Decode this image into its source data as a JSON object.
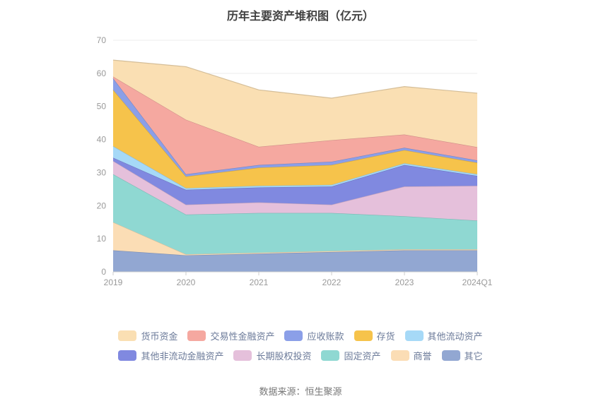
{
  "page": {
    "background": "#ffffff"
  },
  "chart": {
    "title": "历年主要资产堆积图（亿元）",
    "source": "数据来源：恒生聚源"
  },
  "chart_data": {
    "type": "area",
    "stacked": true,
    "stack_order": "reverse-of-legend",
    "title": "历年主要资产堆积图（亿元）",
    "xlabel": "",
    "ylabel": "",
    "categories": [
      "2019",
      "2020",
      "2021",
      "2022",
      "2023",
      "2024Q1"
    ],
    "ylim": [
      0,
      70
    ],
    "ytick_step": 10,
    "grid": true,
    "legend_position": "bottom",
    "axis_label_color": "#999999",
    "gridline_color": "#ececec",
    "axis_line_color": "#cccccc",
    "series": [
      {
        "name": "货币资金",
        "color": "#FADFB3",
        "values": [
          5.0,
          16.0,
          17.2,
          12.7,
          14.5,
          16.3
        ]
      },
      {
        "name": "交易性金融资产",
        "color": "#F5A8A0",
        "values": [
          0.5,
          16.5,
          5.5,
          6.5,
          4.0,
          4.0
        ]
      },
      {
        "name": "应收账款",
        "color": "#8B9FE8",
        "values": [
          3.5,
          0.7,
          0.8,
          1.0,
          0.7,
          0.7
        ]
      },
      {
        "name": "存货",
        "color": "#F6C34B",
        "values": [
          17.0,
          3.5,
          5.5,
          6.0,
          4.0,
          3.5
        ]
      },
      {
        "name": "其他流动资产",
        "color": "#A6D9F7",
        "values": [
          3.5,
          0.5,
          0.5,
          0.5,
          0.5,
          0.5
        ]
      },
      {
        "name": "其他非流动金融资产",
        "color": "#8089E0",
        "values": [
          1.0,
          4.5,
          4.5,
          5.5,
          6.5,
          3.0
        ]
      },
      {
        "name": "长期股权投资",
        "color": "#E5C0DB",
        "values": [
          4.0,
          3.0,
          3.2,
          2.5,
          9.0,
          10.5
        ]
      },
      {
        "name": "固定资产",
        "color": "#8FD8D2",
        "values": [
          14.5,
          12.0,
          12.0,
          11.5,
          10.0,
          8.7
        ]
      },
      {
        "name": "商誉",
        "color": "#FBDDB5",
        "values": [
          8.5,
          0.3,
          0.3,
          0.3,
          0.3,
          0.3
        ]
      },
      {
        "name": "其它",
        "color": "#92A7D2",
        "values": [
          6.5,
          5.0,
          5.5,
          6.0,
          6.5,
          6.5
        ]
      }
    ]
  }
}
